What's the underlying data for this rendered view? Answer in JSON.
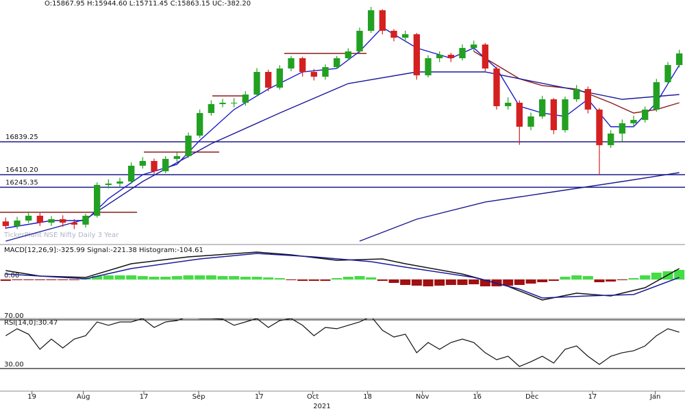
{
  "chart_data": [
    {
      "type": "candlestick",
      "title": "O:15867.95  H:15944.60  L:15711.45  C:15863.15  UC:-382.20",
      "watermark": "TickerPlant  NSE Nifty  Daily 3 Year",
      "xlim": [
        -0.5,
        59.5
      ],
      "ylim": [
        15516,
        18690
      ],
      "up_color": "#22a022",
      "down_color": "#d42020",
      "open": [
        15800,
        15740,
        15811,
        15874,
        15784,
        15829,
        15784,
        15758,
        15874,
        16276,
        16294,
        16321,
        16527,
        16589,
        16455,
        16616,
        16652,
        16920,
        17215,
        17331,
        17349,
        17349,
        17456,
        17751,
        17546,
        17796,
        17930,
        17751,
        17689,
        17814,
        17930,
        18019,
        18288,
        18556,
        18288,
        18198,
        18243,
        17707,
        17930,
        17975,
        17930,
        18064,
        18109,
        17796,
        17304,
        17349,
        17036,
        17170,
        17394,
        16991,
        17394,
        17528,
        17260,
        16795,
        16947,
        17081,
        17125,
        17260,
        17617,
        17841
      ],
      "high": [
        15850,
        15860,
        15930,
        15910,
        15870,
        15880,
        15830,
        15900,
        16310,
        16350,
        16370,
        16570,
        16640,
        16620,
        16650,
        16700,
        16960,
        17260,
        17380,
        17400,
        17410,
        17500,
        17800,
        17780,
        17840,
        17960,
        17950,
        17790,
        17850,
        17960,
        18060,
        18330,
        18600,
        18570,
        18310,
        18290,
        18260,
        17970,
        18020,
        18000,
        18110,
        18160,
        18130,
        17820,
        17420,
        17380,
        17220,
        17440,
        17410,
        17430,
        17580,
        17560,
        17280,
        16990,
        17130,
        17180,
        17300,
        17660,
        17880,
        18040
      ],
      "low": [
        15700,
        15700,
        15780,
        15740,
        15740,
        15730,
        15700,
        15720,
        15850,
        16230,
        16250,
        16290,
        16490,
        16420,
        16430,
        16580,
        16630,
        16890,
        17180,
        17290,
        17290,
        17310,
        17430,
        17500,
        17520,
        17760,
        17690,
        17640,
        17650,
        17790,
        17900,
        18000,
        18260,
        18240,
        18150,
        18140,
        17650,
        17680,
        17880,
        17880,
        17900,
        18020,
        17760,
        17260,
        17260,
        16800,
        16990,
        17140,
        16940,
        16960,
        17360,
        17210,
        16410,
        16760,
        16840,
        17030,
        17090,
        17230,
        17590,
        17810
      ],
      "close": [
        15740,
        15811,
        15874,
        15784,
        15829,
        15784,
        15758,
        15874,
        16276,
        16294,
        16321,
        16527,
        16589,
        16455,
        16616,
        16652,
        16920,
        17215,
        17331,
        17349,
        17349,
        17456,
        17751,
        17546,
        17796,
        17930,
        17751,
        17689,
        17814,
        17930,
        18019,
        18288,
        18556,
        18288,
        18198,
        18243,
        17707,
        17930,
        17975,
        17930,
        18064,
        18109,
        17796,
        17304,
        17349,
        17036,
        17170,
        17394,
        16991,
        17394,
        17528,
        17260,
        16795,
        16947,
        17081,
        17125,
        17260,
        17617,
        17841,
        17993
      ],
      "overlays": [
        {
          "color": "#1a1acc",
          "x": [
            0,
            4,
            7,
            9,
            12,
            15,
            17,
            20,
            23,
            26,
            29,
            31,
            33,
            36,
            39,
            41,
            43,
            45,
            47,
            49,
            51,
            53,
            55,
            57,
            59
          ],
          "values": [
            15713,
            15811,
            15811,
            16097,
            16410,
            16544,
            16857,
            17260,
            17528,
            17751,
            17796,
            18019,
            18332,
            18064,
            17930,
            18064,
            17796,
            17304,
            17215,
            17170,
            17394,
            17036,
            17036,
            17349,
            17841
          ]
        },
        {
          "color": "#8b1a1a",
          "x": [
            41,
            43,
            45,
            47,
            50,
            53,
            55,
            57,
            59
          ],
          "values": [
            18019,
            17841,
            17662,
            17573,
            17528,
            17349,
            17215,
            17260,
            17349
          ]
        },
        {
          "color": "#1a1a99",
          "x": [
            0,
            7,
            12,
            18,
            24,
            30,
            36,
            42,
            48,
            54,
            59
          ],
          "values": [
            15543,
            15829,
            16321,
            16813,
            17215,
            17599,
            17751,
            17751,
            17573,
            17394,
            17456
          ]
        },
        {
          "color": "#1a1a8c",
          "x": [
            31,
            36,
            42,
            48,
            54,
            59
          ],
          "values": [
            15543,
            15829,
            16053,
            16187,
            16321,
            16437
          ]
        }
      ],
      "level_color": "#1a1a8c",
      "levels": [
        16839.25,
        {
          "value": 16410.2,
          "label": "16410.20"
        },
        16245.35
      ],
      "segment_color": "#8b1a1a",
      "segments": [
        {
          "x": [
            -0.5,
            11.5
          ],
          "value": 15919
        },
        {
          "x": [
            12.1,
            18.7
          ],
          "value": 16705
        },
        {
          "x": [
            18.1,
            21.1
          ],
          "value": 17438
        },
        {
          "x": [
            24.4,
            31.6
          ],
          "value": 17993
        }
      ]
    },
    {
      "type": "macd",
      "title": "MACD[12,26,9]:-325.99 Signal:-221.38 Histogram:-104.61",
      "xlim": [
        -0.5,
        59.5
      ],
      "ylim": [
        -684,
        576
      ],
      "yticks": [
        {
          "value": 0,
          "label": "0.00"
        }
      ],
      "series": [
        {
          "color": "#111111",
          "x": [
            0,
            3,
            7,
            11,
            16,
            22,
            25,
            29,
            33,
            35,
            40,
            44,
            47,
            50,
            53,
            56,
            59
          ],
          "values": [
            156,
            60,
            36,
            276,
            396,
            480,
            432,
            336,
            360,
            276,
            96,
            -120,
            -360,
            -240,
            -288,
            -144,
            192
          ]
        },
        {
          "color": "#1a1a99",
          "x": [
            0,
            7,
            11,
            17,
            22,
            27,
            32,
            35,
            41,
            45,
            47,
            51,
            55,
            59
          ],
          "values": [
            96,
            12,
            192,
            360,
            456,
            396,
            312,
            216,
            36,
            -168,
            -324,
            -288,
            -264,
            36
          ]
        }
      ],
      "histogram": {
        "up_color": "#44dd44",
        "down_color": "#a01010",
        "values": [
          -24,
          -12,
          -12,
          -12,
          -12,
          -12,
          -12,
          24,
          60,
          72,
          72,
          72,
          60,
          48,
          48,
          60,
          72,
          72,
          72,
          60,
          60,
          48,
          48,
          36,
          24,
          -12,
          -24,
          -24,
          -24,
          24,
          48,
          60,
          36,
          -24,
          -60,
          -96,
          -108,
          -120,
          -108,
          -96,
          -96,
          -84,
          -120,
          -120,
          -108,
          -96,
          -72,
          -48,
          -24,
          48,
          72,
          60,
          -48,
          -36,
          -12,
          24,
          72,
          120,
          144,
          168
        ]
      }
    },
    {
      "type": "line",
      "title": "RSI[14,0]:30.47",
      "xlim": [
        -0.5,
        59.5
      ],
      "ylim": [
        12,
        71.1
      ],
      "yticks": [
        {
          "value": 70,
          "label": "70.00"
        },
        {
          "value": 30,
          "label": "30.00"
        }
      ],
      "series": [
        {
          "color": "#111111",
          "values": [
            57.0,
            62.7,
            58.2,
            45.8,
            54.2,
            46.9,
            54.2,
            57.0,
            68.3,
            65.5,
            68.3,
            68.3,
            71.1,
            63.8,
            68.3,
            69.4,
            72.8,
            71.1,
            71.1,
            70.6,
            65.5,
            68.3,
            71.1,
            63.8,
            69.4,
            71.1,
            65.5,
            57.0,
            63.8,
            62.7,
            65.5,
            68.3,
            72.8,
            61.5,
            55.9,
            58.2,
            43.0,
            51.4,
            45.8,
            51.4,
            54.2,
            51.4,
            43.0,
            37.3,
            40.1,
            31.7,
            35.6,
            40.1,
            34.5,
            45.8,
            48.6,
            40.1,
            33.4,
            40.1,
            43.0,
            44.6,
            48.6,
            57.0,
            62.7,
            59.9
          ]
        }
      ],
      "xticks": [
        {
          "value": 2.3,
          "label": "19"
        },
        {
          "value": 6.8,
          "label": "Aug"
        },
        {
          "value": 12.1,
          "label": "17"
        },
        {
          "value": 16.9,
          "label": "Sep"
        },
        {
          "value": 22.2,
          "label": "17"
        },
        {
          "value": 26.9,
          "label": "Oct"
        },
        {
          "value": 31.7,
          "label": "18"
        },
        {
          "value": 36.5,
          "label": "Nov"
        },
        {
          "value": 41.3,
          "label": "16"
        },
        {
          "value": 46.1,
          "label": "Dec"
        },
        {
          "value": 51.4,
          "label": "17"
        },
        {
          "value": 56.9,
          "label": "Jan"
        }
      ],
      "xlabel": "2021"
    }
  ]
}
